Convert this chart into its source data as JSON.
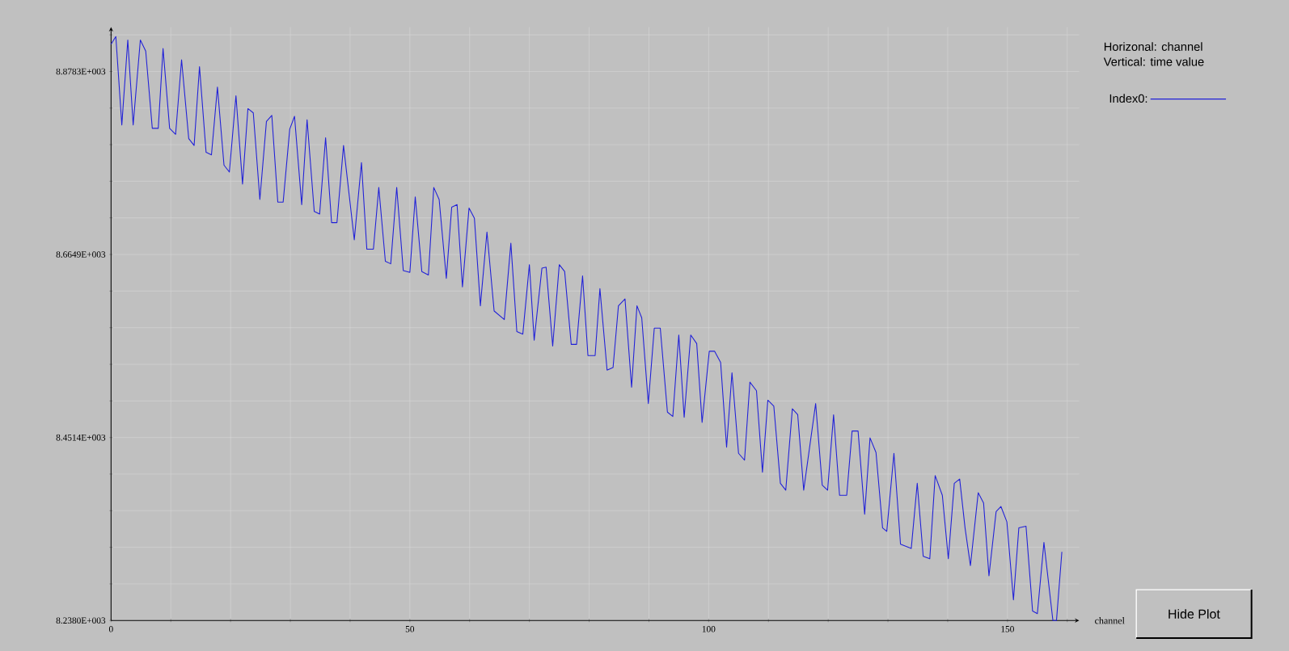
{
  "chart_data": {
    "type": "line",
    "xlabel": "channel",
    "annotations": [
      "Horizonal: channel",
      "Vertical: time value",
      "Hide Plot"
    ],
    "x": [
      0.0,
      0.8,
      1.8,
      2.8,
      3.7,
      4.9,
      5.8,
      6.9,
      7.9,
      8.7,
      9.8,
      10.8,
      11.8,
      13.0,
      13.9,
      14.8,
      15.9,
      16.8,
      17.8,
      18.9,
      19.8,
      20.9,
      22.0,
      22.9,
      23.8,
      24.9,
      26.0,
      26.9,
      27.9,
      28.8,
      29.9,
      30.7,
      31.9,
      32.8,
      34.0,
      34.9,
      35.9,
      36.9,
      37.8,
      38.9,
      40.7,
      41.9,
      42.8,
      43.9,
      44.8,
      45.9,
      46.8,
      47.8,
      48.9,
      50.0,
      50.9,
      52.0,
      53.1,
      54.0,
      54.9,
      56.1,
      57.0,
      57.9,
      58.8,
      59.9,
      60.8,
      61.8,
      62.9,
      64.1,
      65.8,
      66.9,
      67.9,
      68.9,
      70.0,
      70.8,
      72.1,
      72.8,
      73.9,
      75.0,
      75.9,
      77.0,
      77.9,
      78.9,
      79.8,
      81.0,
      81.8,
      83.0,
      84.0,
      84.9,
      86.0,
      87.1,
      88.0,
      88.8,
      89.9,
      90.9,
      91.9,
      93.1,
      94.0,
      95.0,
      95.9,
      97.0,
      98.0,
      98.9,
      100.1,
      101.0,
      102.0,
      103.0,
      103.9,
      105.0,
      106.0,
      106.9,
      108.0,
      109.0,
      109.9,
      110.9,
      112.0,
      112.9,
      114.0,
      114.9,
      115.9,
      117.9,
      119.0,
      119.9,
      120.9,
      121.9,
      123.1,
      124.0,
      125.0,
      126.1,
      127.0,
      128.0,
      129.1,
      129.8,
      131.0,
      132.1,
      133.9,
      134.9,
      135.9,
      137.0,
      137.9,
      139.1,
      140.1,
      141.1,
      142.0,
      142.9,
      143.8,
      145.1,
      146.0,
      146.9,
      148.1,
      148.9,
      149.9,
      151.0,
      151.9,
      153.1,
      154.2,
      155.0,
      156.1,
      157.6,
      158.2,
      159.1
    ],
    "series": [
      {
        "name": "Index0:",
        "color": "#2020d8",
        "values": [
          8910,
          8919,
          8816,
          8915,
          8816,
          8915,
          8902,
          8812,
          8812,
          8905,
          8812,
          8805,
          8892,
          8800,
          8792,
          8884,
          8784,
          8781,
          8860,
          8769,
          8761,
          8850,
          8747,
          8835,
          8830,
          8729,
          8820,
          8827,
          8726,
          8726,
          8811,
          8826,
          8723,
          8822,
          8715,
          8712,
          8801,
          8702,
          8702,
          8792,
          8682,
          8772,
          8671,
          8671,
          8743,
          8657,
          8654,
          8743,
          8646,
          8644,
          8732,
          8645,
          8641,
          8743,
          8729,
          8637,
          8720,
          8723,
          8627,
          8719,
          8707,
          8605,
          8691,
          8599,
          8589,
          8678,
          8575,
          8572,
          8653,
          8565,
          8649,
          8650,
          8558,
          8653,
          8645,
          8560,
          8560,
          8640,
          8547,
          8547,
          8625,
          8530,
          8533,
          8605,
          8613,
          8510,
          8605,
          8591,
          8491,
          8579,
          8579,
          8481,
          8476,
          8571,
          8475,
          8571,
          8561,
          8469,
          8552,
          8552,
          8539,
          8440,
          8527,
          8433,
          8425,
          8516,
          8506,
          8411,
          8495,
          8488,
          8398,
          8390,
          8485,
          8478,
          8390,
          8491,
          8396,
          8390,
          8478,
          8384,
          8384,
          8459,
          8459,
          8362,
          8451,
          8434,
          8346,
          8342,
          8433,
          8327,
          8322,
          8398,
          8313,
          8310,
          8407,
          8384,
          8310,
          8398,
          8403,
          8346,
          8302,
          8387,
          8375,
          8290,
          8365,
          8371,
          8353,
          8262,
          8346,
          8348,
          8249,
          8246,
          8329,
          8238,
          8238,
          8318
        ]
      }
    ],
    "xlim": [
      0,
      162
    ],
    "xticks": [
      0,
      {
        "value": 10,
        "label": null
      },
      {
        "value": 20,
        "label": null
      },
      {
        "value": 30,
        "label": null
      },
      {
        "value": 40,
        "label": null
      },
      50,
      {
        "value": 60,
        "label": null
      },
      {
        "value": 70,
        "label": null
      },
      {
        "value": 80,
        "label": null
      },
      {
        "value": 90,
        "label": null
      },
      100,
      {
        "value": 110,
        "label": null
      },
      {
        "value": 120,
        "label": null
      },
      {
        "value": 130,
        "label": null
      },
      {
        "value": 140,
        "label": null
      },
      150,
      {
        "value": 160,
        "label": null
      }
    ],
    "ylim": [
      8238,
      8930
    ],
    "yticks": [
      {
        "value": 8238.0,
        "label": "8.2380E+003"
      },
      {
        "value": 8280.7,
        "label": null
      },
      {
        "value": 8323.4,
        "label": null
      },
      {
        "value": 8366.1,
        "label": null
      },
      {
        "value": 8408.8,
        "label": null
      },
      {
        "value": 8451.4,
        "label": "8.4514E+003"
      },
      {
        "value": 8494.1,
        "label": null
      },
      {
        "value": 8536.8,
        "label": null
      },
      {
        "value": 8579.5,
        "label": null
      },
      {
        "value": 8622.2,
        "label": null
      },
      {
        "value": 8664.9,
        "label": "8.6649E+003"
      },
      {
        "value": 8707.6,
        "label": null
      },
      {
        "value": 8750.3,
        "label": null
      },
      {
        "value": 8793.0,
        "label": null
      },
      {
        "value": 8835.6,
        "label": null
      },
      {
        "value": 8878.3,
        "label": "8.8783E+003"
      },
      {
        "value": 8921.0,
        "label": null
      }
    ],
    "grid": true,
    "legend": "top right"
  }
}
